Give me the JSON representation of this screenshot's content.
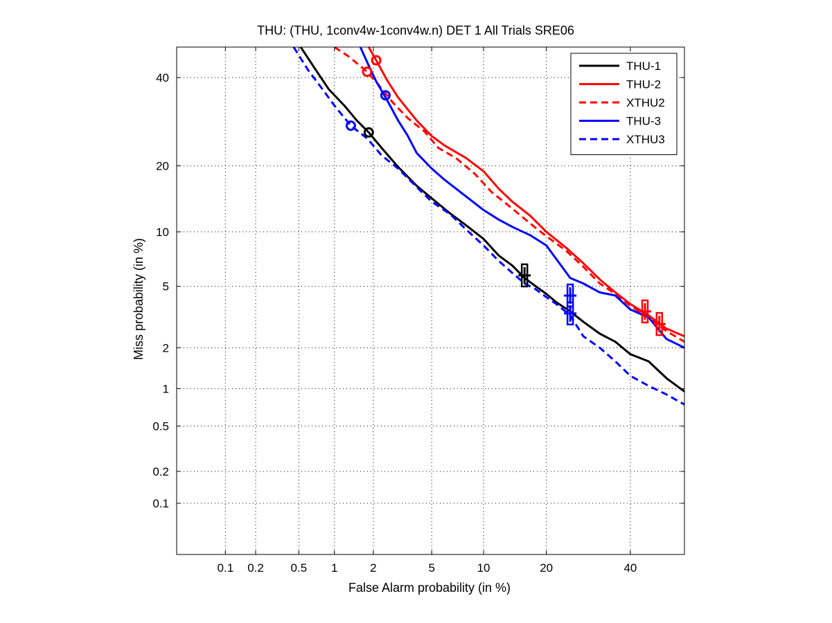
{
  "chart_data": {
    "type": "line",
    "title": "THU: (THU, 1conv4w-1conv4w.n) DET 1 All Trials SRE06",
    "xlabel": "False Alarm probability (in %)",
    "ylabel": "Miss probability (in %)",
    "xscale": "normal-deviate",
    "yscale": "normal-deviate",
    "xlim": [
      0.03,
      55
    ],
    "ylim": [
      0.03,
      48
    ],
    "xticks": [
      0.1,
      0.2,
      0.5,
      1,
      2,
      5,
      10,
      20,
      40
    ],
    "xtick_labels": [
      "0.1",
      "0.2",
      "0.5",
      "1",
      "2",
      "5",
      "10",
      "20",
      "40"
    ],
    "yticks": [
      0.1,
      0.2,
      0.5,
      1,
      2,
      5,
      10,
      20,
      40
    ],
    "ytick_labels": [
      "0.1",
      "0.2",
      "0.5",
      "1",
      "2",
      "5",
      "10",
      "20",
      "40"
    ],
    "grid": true,
    "legend_position": "top-right",
    "series": [
      {
        "name": "THU-1",
        "color": "#000000",
        "style": "solid",
        "x": [
          0.52,
          0.7,
          0.9,
          1.2,
          1.5,
          1.85,
          2.3,
          3,
          4,
          5,
          6.5,
          8,
          10,
          12,
          14,
          16,
          18,
          20,
          22,
          25,
          28,
          32,
          36,
          40,
          45,
          50,
          55
        ],
        "y": [
          48,
          42,
          37,
          33,
          29.5,
          26.8,
          23.5,
          19.8,
          16.5,
          14.5,
          12.3,
          10.8,
          9.2,
          7.5,
          6.6,
          5.6,
          5.0,
          4.5,
          4.0,
          3.5,
          3.0,
          2.5,
          2.2,
          1.8,
          1.6,
          1.2,
          0.95
        ]
      },
      {
        "name": "THU-2",
        "color": "#ff0000",
        "style": "solid",
        "x": [
          1.85,
          2.1,
          2.5,
          3,
          4,
          5,
          6,
          8,
          10,
          12,
          14,
          17,
          20,
          24,
          28,
          32,
          36,
          40,
          45,
          50,
          55
        ],
        "y": [
          48,
          44.5,
          39.5,
          35,
          29.5,
          26,
          24,
          21.5,
          19,
          16,
          14,
          12,
          10,
          8.3,
          6.8,
          5.5,
          4.6,
          3.9,
          3.3,
          2.7,
          2.4
        ]
      },
      {
        "name": "XTHU2",
        "color": "#ff0000",
        "style": "dashed",
        "x": [
          1.0,
          1.3,
          1.8,
          2.2,
          2.8,
          3.5,
          4.5,
          5.5,
          7,
          9,
          11,
          14,
          17,
          20,
          24,
          28,
          32,
          36,
          40,
          45,
          50,
          55
        ],
        "y": [
          48,
          45.5,
          41.5,
          38,
          33.5,
          30,
          27,
          23.5,
          21.5,
          18.5,
          15.5,
          13,
          11,
          9.5,
          8,
          6.5,
          5.2,
          4.5,
          3.8,
          3.2,
          2.6,
          2.2
        ]
      },
      {
        "name": "THU-3",
        "color": "#0000ff",
        "style": "solid",
        "x": [
          1.6,
          1.8,
          2.1,
          2.5,
          3,
          3.5,
          4,
          5,
          6,
          8,
          10,
          12,
          14,
          17,
          20,
          25,
          28,
          32,
          36,
          40,
          45,
          50,
          55
        ],
        "y": [
          48,
          44,
          39,
          34.5,
          29.5,
          26,
          22.5,
          19.5,
          17.5,
          14.8,
          12.8,
          11.5,
          10.6,
          9.6,
          8.5,
          5.6,
          5.2,
          4.6,
          4.4,
          3.6,
          3.2,
          2.3,
          2.0
        ]
      },
      {
        "name": "XTHU3",
        "color": "#0000ff",
        "style": "dashed",
        "x": [
          0.45,
          0.6,
          0.8,
          1.0,
          1.35,
          1.8,
          2.3,
          3,
          4,
          5,
          6.5,
          8,
          10,
          12,
          14,
          16,
          18,
          20,
          22,
          25,
          28,
          32,
          36,
          40,
          45,
          50,
          55
        ],
        "y": [
          48,
          42,
          37,
          33,
          28.3,
          25.5,
          22,
          19.5,
          16.3,
          14,
          12.2,
          10.3,
          8.5,
          7,
          6,
          5.2,
          4.8,
          4.3,
          3.9,
          3.3,
          2.4,
          2.0,
          1.6,
          1.25,
          1.05,
          0.9,
          0.75
        ]
      }
    ],
    "markers": [
      {
        "series": "THU-1",
        "shape": "circle",
        "x": 1.85,
        "y": 26.8
      },
      {
        "series": "THU-1",
        "shape": "cross",
        "x": 16,
        "y": 5.8
      },
      {
        "series": "THU-2",
        "shape": "circle",
        "x": 2.1,
        "y": 44.5
      },
      {
        "series": "THU-2",
        "shape": "cross",
        "x": 48,
        "y": 2.9
      },
      {
        "series": "XTHU2",
        "shape": "circle",
        "x": 1.8,
        "y": 41.5
      },
      {
        "series": "XTHU2",
        "shape": "cross",
        "x": 44,
        "y": 3.5
      },
      {
        "series": "THU-3",
        "shape": "circle",
        "x": 2.45,
        "y": 35.5
      },
      {
        "series": "THU-3",
        "shape": "cross",
        "x": 25,
        "y": 4.4
      },
      {
        "series": "XTHU3",
        "shape": "circle",
        "x": 1.35,
        "y": 28.3
      },
      {
        "series": "XTHU3",
        "shape": "cross",
        "x": 25,
        "y": 3.4
      }
    ]
  }
}
